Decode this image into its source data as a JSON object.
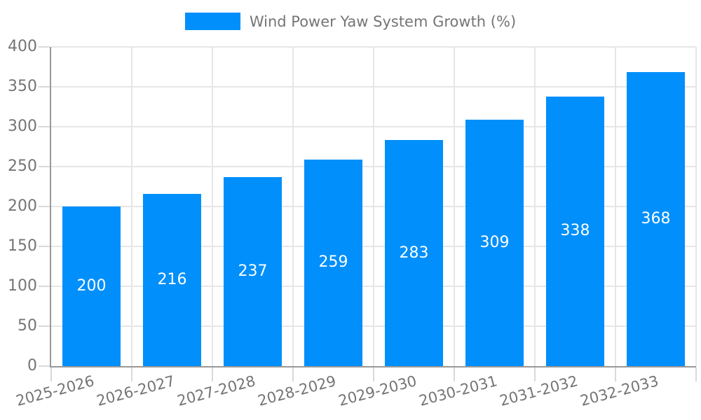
{
  "legend": {
    "label": "Wind Power Yaw System Growth (%)"
  },
  "chart_data": {
    "type": "bar",
    "title": "Wind Power Yaw System Growth (%)",
    "categories": [
      "2025-2026",
      "2026-2027",
      "2027-2028",
      "2028-2029",
      "2029-2030",
      "2030-2031",
      "2031-2032",
      "2032-2033"
    ],
    "values": [
      200,
      216,
      237,
      259,
      283,
      309,
      338,
      368
    ],
    "value_labels": "inside-center",
    "value_label_texts": [
      "200",
      "216",
      "237",
      "259",
      "283",
      "309",
      "338",
      "368"
    ],
    "ylim": [
      0,
      400
    ],
    "yticks": [
      0,
      50,
      100,
      150,
      200,
      250,
      300,
      350,
      400
    ],
    "grid": true,
    "legend_position": "top-center",
    "x_label_rotation_deg": -15,
    "colors": {
      "bar": "#008FFB",
      "value_label": "#ffffff",
      "axis_line": "#999999",
      "gridline": "#e6e6e6",
      "tick_mark": "#d9d9d9",
      "text": "#757575",
      "background": "#ffffff"
    }
  }
}
